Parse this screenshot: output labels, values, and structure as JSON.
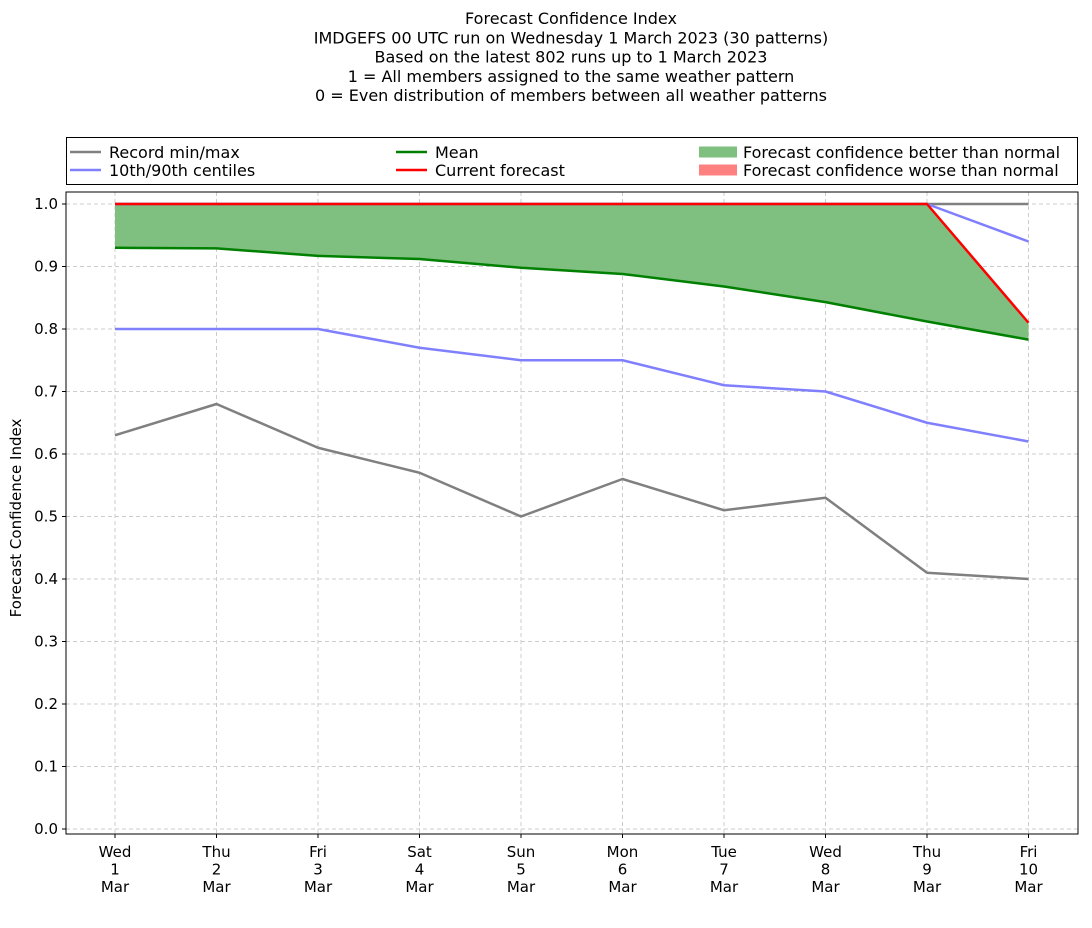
{
  "chart_data": {
    "type": "line",
    "title_lines": [
      "Forecast Confidence Index",
      "IMDGEFS 00 UTC run on Wednesday 1 March 2023 (30 patterns)",
      "Based on the latest 802 runs up to 1 March 2023",
      "1 = All members assigned to the same weather pattern",
      "0 = Even distribution of members between all weather patterns"
    ],
    "ylabel": "Forecast Confidence Index",
    "ylim": [
      0,
      1
    ],
    "yticks": [
      0.0,
      0.1,
      0.2,
      0.3,
      0.4,
      0.5,
      0.6,
      0.7,
      0.8,
      0.9,
      1.0
    ],
    "ytick_labels": [
      "0.0",
      "0.1",
      "0.2",
      "0.3",
      "0.4",
      "0.5",
      "0.6",
      "0.7",
      "0.8",
      "0.9",
      "1.0"
    ],
    "grid": true,
    "legend_position": "top",
    "categories": [
      [
        "Wed",
        "1",
        "Mar"
      ],
      [
        "Thu",
        "2",
        "Mar"
      ],
      [
        "Fri",
        "3",
        "Mar"
      ],
      [
        "Sat",
        "4",
        "Mar"
      ],
      [
        "Sun",
        "5",
        "Mar"
      ],
      [
        "Mon",
        "6",
        "Mar"
      ],
      [
        "Tue",
        "7",
        "Mar"
      ],
      [
        "Wed",
        "8",
        "Mar"
      ],
      [
        "Thu",
        "9",
        "Mar"
      ],
      [
        "Fri",
        "10",
        "Mar"
      ]
    ],
    "series": [
      {
        "key": "record_min",
        "name": "Record min/max",
        "color": "#808080",
        "values": [
          0.63,
          0.68,
          0.61,
          0.57,
          0.5,
          0.56,
          0.51,
          0.53,
          0.41,
          0.4
        ]
      },
      {
        "key": "record_max",
        "name": "Record min/max",
        "color": "#808080",
        "values": [
          1.0,
          1.0,
          1.0,
          1.0,
          1.0,
          1.0,
          1.0,
          1.0,
          1.0,
          1.0
        ]
      },
      {
        "key": "p10",
        "name": "10th/90th centiles",
        "color": "#8080ff",
        "values": [
          0.8,
          0.8,
          0.8,
          0.77,
          0.75,
          0.75,
          0.71,
          0.7,
          0.65,
          0.62
        ]
      },
      {
        "key": "p90",
        "name": "10th/90th centiles",
        "color": "#8080ff",
        "values": [
          1.0,
          1.0,
          1.0,
          1.0,
          1.0,
          1.0,
          1.0,
          1.0,
          1.0,
          0.94
        ]
      },
      {
        "key": "mean",
        "name": "Mean",
        "color": "#008000",
        "values": [
          0.93,
          0.929,
          0.917,
          0.912,
          0.898,
          0.888,
          0.868,
          0.843,
          0.812,
          0.783
        ]
      },
      {
        "key": "current",
        "name": "Current forecast",
        "color": "#ff0000",
        "values": [
          1.0,
          1.0,
          1.0,
          1.0,
          1.0,
          1.0,
          1.0,
          1.0,
          1.0,
          0.81
        ]
      }
    ],
    "fills": {
      "better": {
        "label": "Forecast confidence better than normal",
        "color": "#7fbf7f"
      },
      "worse": {
        "label": "Forecast confidence worse than normal",
        "color": "#ff8080"
      }
    },
    "legend": [
      {
        "label": "Record min/max",
        "kind": "line",
        "color": "#808080"
      },
      {
        "label": "10th/90th centiles",
        "kind": "line",
        "color": "#8080ff"
      },
      {
        "label": "Mean",
        "kind": "line",
        "color": "#008000"
      },
      {
        "label": "Current forecast",
        "kind": "line",
        "color": "#ff0000"
      },
      {
        "label": "Forecast confidence better than normal",
        "kind": "patch",
        "color": "#7fbf7f"
      },
      {
        "label": "Forecast confidence worse than normal",
        "kind": "patch",
        "color": "#ff8080"
      }
    ]
  }
}
